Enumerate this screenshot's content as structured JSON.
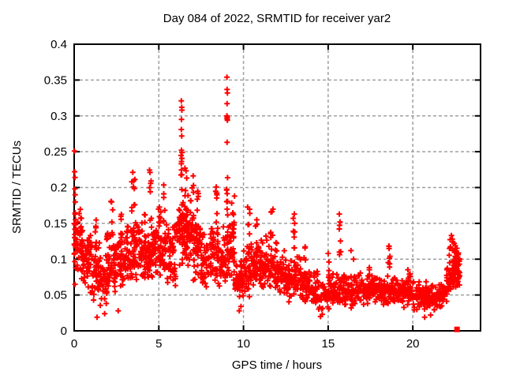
{
  "chart_data": {
    "type": "scatter",
    "title": "Day 084 of 2022, SRMTID for receiver yar2",
    "xlabel": "GPS time / hours",
    "ylabel": "SRMTID / TECUs",
    "xlim": [
      0,
      24
    ],
    "ylim": [
      0,
      0.4
    ],
    "xticks": [
      0,
      5,
      10,
      15,
      20
    ],
    "xtick_labels": [
      "0",
      "5",
      "10",
      "15",
      "20"
    ],
    "yticks": [
      0,
      0.05,
      0.1,
      0.15,
      0.2,
      0.25,
      0.3,
      0.35,
      0.4
    ],
    "ytick_labels": [
      "0",
      "0.05",
      "0.1",
      "0.15",
      "0.2",
      "0.25",
      "0.3",
      "0.35",
      "0.4"
    ],
    "grid": true,
    "legend": "none",
    "series_name": "SRMTID",
    "marker": {
      "shape": "plus",
      "color": "#ff0000",
      "size": 7
    },
    "grid_color": "#a0a0a0",
    "border_color": "#000000",
    "seed": 2022084,
    "density_bins": [
      [
        0.0,
        0.5,
        52,
        0.06,
        0.17
      ],
      [
        0.5,
        1.0,
        46,
        0.05,
        0.14
      ],
      [
        1.0,
        1.5,
        46,
        0.04,
        0.125
      ],
      [
        1.5,
        2.0,
        46,
        0.028,
        0.115
      ],
      [
        2.0,
        2.5,
        46,
        0.04,
        0.13
      ],
      [
        2.5,
        3.0,
        46,
        0.05,
        0.145
      ],
      [
        3.0,
        3.5,
        48,
        0.06,
        0.155
      ],
      [
        3.5,
        4.0,
        50,
        0.07,
        0.16
      ],
      [
        4.0,
        4.5,
        48,
        0.065,
        0.15
      ],
      [
        4.5,
        5.0,
        48,
        0.07,
        0.155
      ],
      [
        5.0,
        5.5,
        48,
        0.07,
        0.16
      ],
      [
        5.5,
        6.0,
        46,
        0.06,
        0.15
      ],
      [
        6.0,
        6.5,
        55,
        0.08,
        0.2
      ],
      [
        6.5,
        7.0,
        55,
        0.08,
        0.2
      ],
      [
        7.0,
        7.5,
        48,
        0.065,
        0.17
      ],
      [
        7.5,
        8.0,
        44,
        0.055,
        0.14
      ],
      [
        8.0,
        8.5,
        46,
        0.06,
        0.155
      ],
      [
        8.5,
        9.0,
        44,
        0.05,
        0.15
      ],
      [
        9.0,
        9.5,
        46,
        0.06,
        0.165
      ],
      [
        9.5,
        10.0,
        40,
        0.03,
        0.11
      ],
      [
        10.0,
        10.5,
        44,
        0.04,
        0.13
      ],
      [
        10.5,
        11.0,
        44,
        0.05,
        0.13
      ],
      [
        11.0,
        11.5,
        44,
        0.05,
        0.135
      ],
      [
        11.5,
        12.0,
        44,
        0.05,
        0.13
      ],
      [
        12.0,
        12.5,
        42,
        0.045,
        0.115
      ],
      [
        12.5,
        13.0,
        40,
        0.04,
        0.1
      ],
      [
        13.0,
        13.5,
        40,
        0.04,
        0.105
      ],
      [
        13.5,
        14.0,
        40,
        0.035,
        0.095
      ],
      [
        14.0,
        14.5,
        38,
        0.028,
        0.085
      ],
      [
        14.5,
        15.0,
        38,
        0.022,
        0.075
      ],
      [
        15.0,
        15.5,
        38,
        0.03,
        0.085
      ],
      [
        15.5,
        16.0,
        38,
        0.03,
        0.09
      ],
      [
        16.0,
        16.5,
        38,
        0.03,
        0.08
      ],
      [
        16.5,
        17.0,
        38,
        0.032,
        0.085
      ],
      [
        17.0,
        17.5,
        38,
        0.03,
        0.08
      ],
      [
        17.5,
        18.0,
        38,
        0.035,
        0.082
      ],
      [
        18.0,
        18.5,
        38,
        0.03,
        0.078
      ],
      [
        18.5,
        19.0,
        38,
        0.034,
        0.08
      ],
      [
        19.0,
        19.5,
        38,
        0.03,
        0.075
      ],
      [
        19.5,
        20.0,
        38,
        0.032,
        0.08
      ],
      [
        20.0,
        20.5,
        36,
        0.026,
        0.07
      ],
      [
        20.5,
        21.0,
        36,
        0.028,
        0.07
      ],
      [
        21.0,
        21.5,
        36,
        0.026,
        0.068
      ],
      [
        21.5,
        22.0,
        36,
        0.03,
        0.075
      ],
      [
        22.0,
        22.4,
        30,
        0.045,
        0.1
      ],
      [
        22.4,
        22.78,
        46,
        0.055,
        0.125
      ]
    ],
    "bursts": [
      [
        0.05,
        0.05,
        6,
        0.13,
        0.185
      ],
      [
        0.35,
        0.08,
        5,
        0.14,
        0.185
      ],
      [
        1.3,
        0.06,
        5,
        0.11,
        0.155
      ],
      [
        1.95,
        0.06,
        5,
        0.1,
        0.145
      ],
      [
        2.2,
        0.08,
        7,
        0.12,
        0.19
      ],
      [
        2.8,
        0.05,
        5,
        0.12,
        0.168
      ],
      [
        3.5,
        0.1,
        10,
        0.14,
        0.225
      ],
      [
        4.2,
        0.05,
        5,
        0.125,
        0.175
      ],
      [
        4.5,
        0.06,
        8,
        0.15,
        0.228
      ],
      [
        5.05,
        0.08,
        6,
        0.14,
        0.19
      ],
      [
        5.3,
        0.05,
        6,
        0.15,
        0.21
      ],
      [
        6.35,
        0.04,
        9,
        0.19,
        0.25
      ],
      [
        6.6,
        0.06,
        6,
        0.16,
        0.23
      ],
      [
        7.0,
        0.05,
        7,
        0.15,
        0.22
      ],
      [
        7.3,
        0.06,
        5,
        0.14,
        0.195
      ],
      [
        8.4,
        0.05,
        7,
        0.14,
        0.215
      ],
      [
        9.03,
        0.05,
        9,
        0.15,
        0.215
      ],
      [
        9.4,
        0.1,
        8,
        0.13,
        0.19
      ],
      [
        10.3,
        0.1,
        6,
        0.13,
        0.195
      ],
      [
        10.75,
        0.05,
        4,
        0.12,
        0.155
      ],
      [
        11.7,
        0.1,
        7,
        0.13,
        0.17
      ],
      [
        13.0,
        0.06,
        7,
        0.1,
        0.158
      ],
      [
        13.6,
        0.06,
        4,
        0.09,
        0.13
      ],
      [
        15.7,
        0.05,
        6,
        0.1,
        0.158
      ],
      [
        17.5,
        0.1,
        5,
        0.075,
        0.1
      ],
      [
        18.6,
        0.06,
        6,
        0.085,
        0.125
      ],
      [
        19.8,
        0.1,
        4,
        0.075,
        0.095
      ],
      [
        22.35,
        0.2,
        25,
        0.06,
        0.128
      ]
    ],
    "points": [
      [
        0.02,
        0.251
      ],
      [
        0.03,
        0.222
      ],
      [
        0.05,
        0.214
      ],
      [
        0.04,
        0.198
      ],
      [
        0.06,
        0.19
      ],
      [
        1.35,
        0.019
      ],
      [
        1.8,
        0.024
      ],
      [
        2.6,
        0.028
      ],
      [
        6.33,
        0.321
      ],
      [
        6.35,
        0.312
      ],
      [
        6.36,
        0.308
      ],
      [
        6.34,
        0.295
      ],
      [
        6.33,
        0.281
      ],
      [
        6.35,
        0.272
      ],
      [
        6.34,
        0.252
      ],
      [
        9.02,
        0.354
      ],
      [
        9.03,
        0.337
      ],
      [
        9.05,
        0.332
      ],
      [
        9.03,
        0.317
      ],
      [
        9.02,
        0.3
      ],
      [
        9.04,
        0.298
      ],
      [
        9.03,
        0.296
      ],
      [
        9.05,
        0.294
      ],
      [
        9.03,
        0.263
      ],
      [
        9.75,
        0.028
      ],
      [
        9.85,
        0.034
      ],
      [
        13.0,
        0.163
      ],
      [
        13.02,
        0.15
      ],
      [
        14.55,
        0.02
      ],
      [
        14.65,
        0.023
      ],
      [
        15.0,
        0.108
      ],
      [
        15.05,
        0.096
      ],
      [
        15.66,
        0.163
      ],
      [
        15.7,
        0.152
      ],
      [
        16.35,
        0.112
      ],
      [
        16.5,
        0.1
      ],
      [
        18.6,
        0.118
      ],
      [
        18.65,
        0.104
      ],
      [
        20.7,
        0.019
      ],
      [
        21.05,
        0.022
      ],
      [
        22.28,
        0.133
      ],
      [
        22.33,
        0.128
      ],
      [
        22.45,
        0.122
      ],
      [
        22.74,
        0.097
      ],
      [
        22.7,
        0.082
      ]
    ],
    "special_points": [
      {
        "x": 22.61,
        "y": 0.002,
        "marker": "filled-square",
        "color": "#ff0000"
      }
    ]
  }
}
